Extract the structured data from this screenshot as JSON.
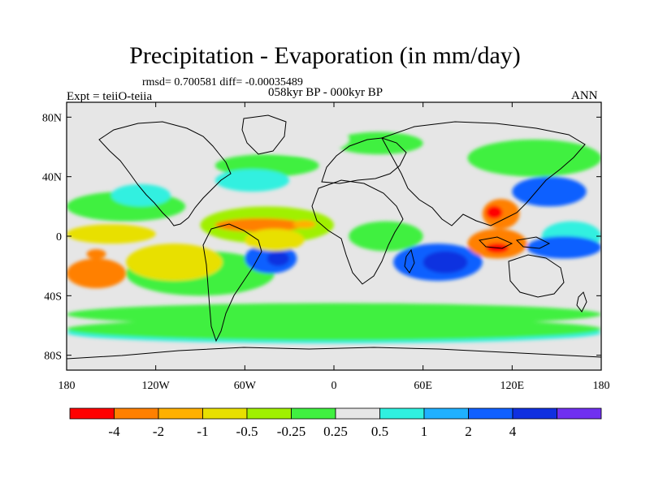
{
  "header": {
    "title": "Precipitation - Evaporation (in mm/day)",
    "stats": "rmsd= 0.700581  diff= -0.00035489",
    "experiment": "Expt = teiiO-teiia",
    "period": "058kyr BP - 000kyr BP",
    "season": "ANN"
  },
  "axes": {
    "y_ticks": [
      {
        "value": 80,
        "label": "80N"
      },
      {
        "value": 40,
        "label": "40N"
      },
      {
        "value": 0,
        "label": "0"
      },
      {
        "value": -40,
        "label": "40S"
      },
      {
        "value": -80,
        "label": "80S"
      }
    ],
    "x_ticks": [
      {
        "value": -180,
        "label": "180"
      },
      {
        "value": -120,
        "label": "120W"
      },
      {
        "value": -60,
        "label": "60W"
      },
      {
        "value": 0,
        "label": "0"
      },
      {
        "value": 60,
        "label": "60E"
      },
      {
        "value": 120,
        "label": "120E"
      },
      {
        "value": 180,
        "label": "180"
      }
    ],
    "lon_range": [
      -180,
      180
    ],
    "lat_range": [
      -90,
      90
    ]
  },
  "colorbar": {
    "colors": [
      "#ff0000",
      "#ff8000",
      "#ffb000",
      "#e8e000",
      "#a0f000",
      "#40f040",
      "#e6e6e6",
      "#30f0e0",
      "#20b0ff",
      "#1060ff",
      "#1030e0",
      "#7030f0"
    ],
    "labels": [
      "-4",
      "-2",
      "-1",
      "-0.5",
      "-0.25",
      "0.25",
      "0.5",
      "1",
      "2",
      "4"
    ]
  },
  "chart_data": {
    "type": "heatmap",
    "title": "Precipitation - Evaporation (in mm/day)",
    "subtitle": "058kyr BP - 000kyr BP",
    "variable_units": "mm/day",
    "lon_range": [
      -180,
      180
    ],
    "lat_range": [
      -90,
      90
    ],
    "levels": [
      -4,
      -2,
      -1,
      -0.5,
      -0.25,
      0.25,
      0.5,
      1,
      2,
      4
    ],
    "rmsd": 0.700581,
    "diff": -0.00035489,
    "regions": [
      {
        "lon": [
          -140,
          -75
        ],
        "lat": [
          -30,
          -5
        ],
        "level": "-1 to -0.5"
      },
      {
        "lon": [
          -120,
          -80
        ],
        "lat": [
          -20,
          -8
        ],
        "level": "-1 to -0.5"
      },
      {
        "lon": [
          -60,
          -25
        ],
        "lat": [
          -25,
          -5
        ],
        "level": "1 to 2"
      },
      {
        "lon": [
          -45,
          -30
        ],
        "lat": [
          -20,
          -10
        ],
        "level": "2 to 4"
      },
      {
        "lon": [
          -80,
          -20
        ],
        "lat": [
          3,
          12
        ],
        "level": "-4 to -1"
      },
      {
        "lon": [
          -60,
          -20
        ],
        "lat": [
          -10,
          5
        ],
        "level": "-2 to -0.5"
      },
      {
        "lon": [
          40,
          100
        ],
        "lat": [
          -30,
          -5
        ],
        "level": "1 to 2"
      },
      {
        "lon": [
          60,
          90
        ],
        "lat": [
          -25,
          -10
        ],
        "level": "2 to 4"
      },
      {
        "lon": [
          90,
          130
        ],
        "lat": [
          -15,
          5
        ],
        "level": "-4 to -1"
      },
      {
        "lon": [
          100,
          125
        ],
        "lat": [
          5,
          25
        ],
        "level": "-4 to -1"
      },
      {
        "lon": [
          130,
          180
        ],
        "lat": [
          -15,
          0
        ],
        "level": "1 to 2"
      },
      {
        "lon": [
          -180,
          -120
        ],
        "lat": [
          -5,
          8
        ],
        "level": "-1 to -0.5"
      },
      {
        "lon": [
          -180,
          -140
        ],
        "lat": [
          -35,
          -15
        ],
        "level": "-4 to -1"
      },
      {
        "lon": [
          -80,
          -30
        ],
        "lat": [
          30,
          45
        ],
        "level": "0.5 to 1"
      },
      {
        "lon": [
          -150,
          -110
        ],
        "lat": [
          20,
          35
        ],
        "level": "0.5 to 1"
      },
      {
        "lon": [
          -60,
          10
        ],
        "lat": [
          55,
          75
        ],
        "level": "-0.5 to 0.5"
      },
      {
        "lon": [
          120,
          170
        ],
        "lat": [
          20,
          40
        ],
        "level": "1 to 2"
      },
      {
        "lon": [
          -180,
          180
        ],
        "lat": [
          -70,
          -55
        ],
        "level": "-0.5 to -0.25"
      }
    ]
  }
}
